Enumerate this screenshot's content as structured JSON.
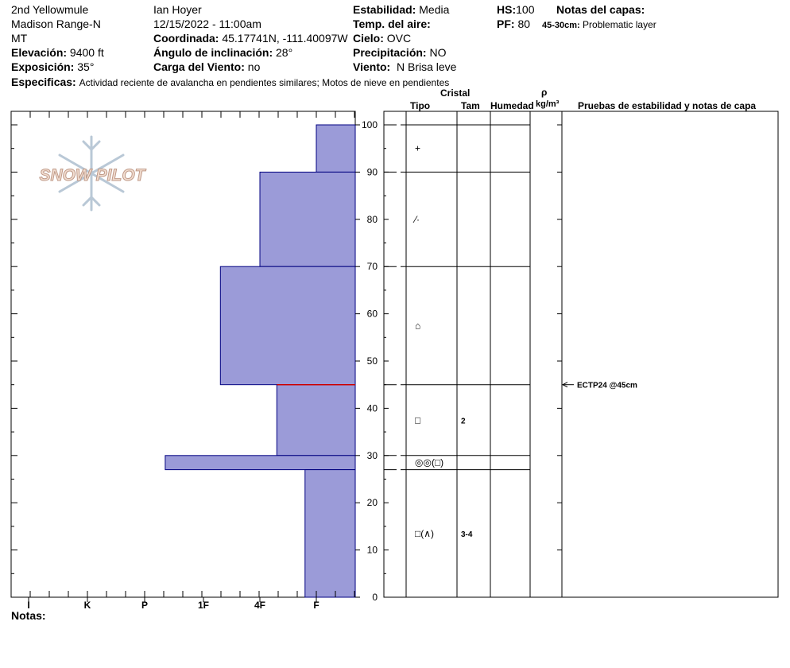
{
  "header": {
    "location": "2nd Yellowmule",
    "range": "Madison Range-N",
    "state": "MT",
    "elevation_label": "Elevación:",
    "elevation_value": "9400 ft",
    "aspect_label": "Exposición:",
    "aspect_value": "35°",
    "specifics_label": "Especificas:",
    "specifics_value": "Actividad reciente de avalancha en pendientes similares; Motos de nieve en pendientes",
    "observer": "Ian Hoyer",
    "datetime": "12/15/2022 - 11:00am",
    "coord_label": "Coordinada:",
    "coord_value": "45.17741N, -111.40097W",
    "slope_label": "Ángulo de inclinación:",
    "slope_value": "28°",
    "wind_load_label": "Carga del Viento:",
    "wind_load_value": "no",
    "stability_label": "Estabilidad:",
    "stability_value": "Media",
    "air_temp_label": "Temp. del aire:",
    "air_temp_value": "",
    "sky_label": "Cielo:",
    "sky_value": "OVC",
    "precip_label": "Precipitación:",
    "precip_value": "NO",
    "wind_label": "Viento:",
    "wind_value": "N Brisa leve",
    "hs_label": "HS:",
    "hs_value": "100",
    "pf_label": "PF:",
    "pf_value": "80",
    "layer_notes_label": "Notas del capas:",
    "layer_note_depth": "45-30cm:",
    "layer_note_text": "Problematic layer"
  },
  "logo_text": "SNOW PILOT",
  "table_headers": {
    "crystal": "Cristal",
    "type": "Tipo",
    "size": "Tam",
    "moisture": "Humedad",
    "rho": "ρ",
    "density_unit": "kg/m³",
    "tests": "Pruebas de estabilidad y notas de capa"
  },
  "notes_label": "Notas:",
  "colors": {
    "layer_fill": "#9b9bd8",
    "layer_stroke": "#000080",
    "weak_layer_line": "#cc0000"
  },
  "chart_data": {
    "type": "snow_profile",
    "x_tick_labels": [
      "I",
      "K",
      "P",
      "1F",
      "4F",
      "F"
    ],
    "y_ticks": [
      0,
      10,
      20,
      30,
      40,
      50,
      60,
      70,
      80,
      90,
      100
    ],
    "ylim": [
      0,
      100
    ],
    "hardness_scale_note": "F=1, 4F=2, 1F=3, P=4, K=5, I=6",
    "layers": [
      {
        "top": 100,
        "bottom": 90,
        "hardness": 1.0,
        "hardness_label": "F",
        "grain": "+",
        "size": ""
      },
      {
        "top": 90,
        "bottom": 70,
        "hardness": 2.0,
        "hardness_label": "4F",
        "grain": "⁄·",
        "size": ""
      },
      {
        "top": 70,
        "bottom": 45,
        "hardness": 2.7,
        "hardness_label": "4F+",
        "grain": "⌂",
        "size": ""
      },
      {
        "top": 45,
        "bottom": 30,
        "hardness": 1.7,
        "hardness_label": "F+",
        "grain": "□",
        "size": "2"
      },
      {
        "top": 30,
        "bottom": 27,
        "hardness": 3.65,
        "hardness_label": "1F-",
        "grain": "◎◎(□)",
        "size": ""
      },
      {
        "top": 27,
        "bottom": 0,
        "hardness": 1.2,
        "hardness_label": "F",
        "grain": "□(∧)",
        "size": "3-4"
      }
    ],
    "weak_layer_depth": 45,
    "stability_tests": [
      {
        "depth": 45,
        "label": "ECTP24 @45cm"
      }
    ]
  }
}
